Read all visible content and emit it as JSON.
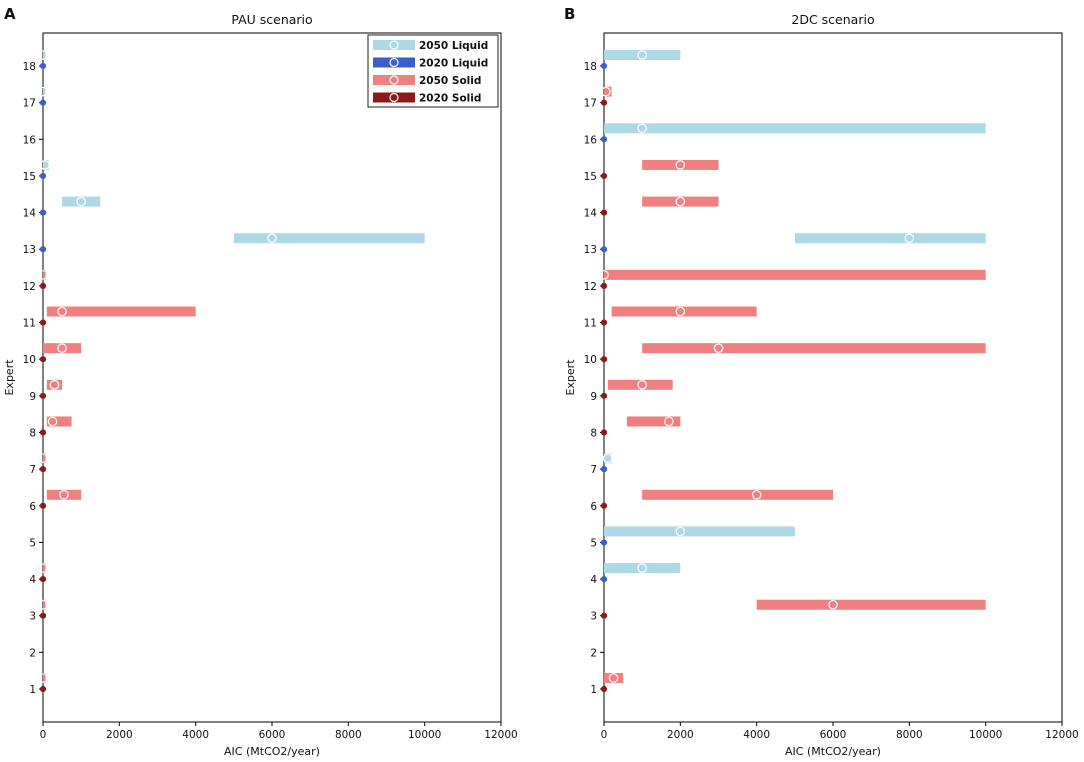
{
  "figure": {
    "panel_labels": [
      "A",
      "B"
    ]
  },
  "legend": {
    "entries": [
      {
        "label": "2050 Liquid",
        "color": "#add8e6"
      },
      {
        "label": "2020 Liquid",
        "color": "#4169e1"
      },
      {
        "label": "2050 Solid",
        "color": "#f08080"
      },
      {
        "label": "2020 Solid",
        "color": "#8b1a1a"
      }
    ]
  },
  "colors": {
    "liquid_2050": "#add8e6",
    "liquid_2020": "#3a5fcd",
    "solid_2050": "#f08080",
    "solid_2020": "#8b1a1a",
    "marker_ring": "#ffffff"
  },
  "chart_data": [
    {
      "type": "range-bar",
      "title": "PAU scenario",
      "xlabel": "AIC (MtCO2/year)",
      "ylabel": "Expert",
      "xlim": [
        0,
        12000
      ],
      "ylim": [
        0.1,
        18.9
      ],
      "xticks": [
        0,
        2000,
        4000,
        6000,
        8000,
        10000,
        12000
      ],
      "yticks": [
        1,
        2,
        3,
        4,
        5,
        6,
        7,
        8,
        9,
        10,
        11,
        12,
        13,
        14,
        15,
        16,
        17,
        18
      ],
      "series_2020": [
        {
          "expert": 1,
          "kind": "solid",
          "value": 0
        },
        {
          "expert": 3,
          "kind": "solid",
          "value": 0
        },
        {
          "expert": 4,
          "kind": "solid",
          "value": 0
        },
        {
          "expert": 6,
          "kind": "solid",
          "value": 0
        },
        {
          "expert": 7,
          "kind": "solid",
          "value": 0
        },
        {
          "expert": 8,
          "kind": "solid",
          "value": 0
        },
        {
          "expert": 9,
          "kind": "solid",
          "value": 0
        },
        {
          "expert": 10,
          "kind": "solid",
          "value": 0
        },
        {
          "expert": 11,
          "kind": "solid",
          "value": 0
        },
        {
          "expert": 12,
          "kind": "solid",
          "value": 0
        },
        {
          "expert": 13,
          "kind": "liquid",
          "value": 0
        },
        {
          "expert": 14,
          "kind": "liquid",
          "value": 0
        },
        {
          "expert": 15,
          "kind": "liquid",
          "value": 0
        },
        {
          "expert": 17,
          "kind": "liquid",
          "value": 0
        },
        {
          "expert": 18,
          "kind": "liquid",
          "value": 0
        }
      ],
      "series_2050": [
        {
          "expert": 1,
          "kind": "solid",
          "low": 0,
          "high": 20,
          "best": 0
        },
        {
          "expert": 3,
          "kind": "solid",
          "low": 0,
          "high": 20,
          "best": 0
        },
        {
          "expert": 4,
          "kind": "solid",
          "low": 0,
          "high": 20,
          "best": 0
        },
        {
          "expert": 6,
          "kind": "solid",
          "low": 100,
          "high": 1000,
          "best": 550
        },
        {
          "expert": 7,
          "kind": "solid",
          "low": 0,
          "high": 20,
          "best": 0
        },
        {
          "expert": 8,
          "kind": "solid",
          "low": 100,
          "high": 750,
          "best": 250
        },
        {
          "expert": 9,
          "kind": "solid",
          "low": 100,
          "high": 500,
          "best": 300
        },
        {
          "expert": 10,
          "kind": "solid",
          "low": 0,
          "high": 1000,
          "best": 500
        },
        {
          "expert": 11,
          "kind": "solid",
          "low": 100,
          "high": 4000,
          "best": 500
        },
        {
          "expert": 12,
          "kind": "solid",
          "low": 0,
          "high": 20,
          "best": 0
        },
        {
          "expert": 13,
          "kind": "liquid",
          "low": 5000,
          "high": 10000,
          "best": 6000
        },
        {
          "expert": 14,
          "kind": "liquid",
          "low": 500,
          "high": 1500,
          "best": 1000
        },
        {
          "expert": 15,
          "kind": "liquid",
          "low": 0,
          "high": 150,
          "best": 50
        },
        {
          "expert": 17,
          "kind": "liquid",
          "low": 0,
          "high": 20,
          "best": 0
        },
        {
          "expert": 18,
          "kind": "liquid",
          "low": 0,
          "high": 20,
          "best": 0
        }
      ]
    },
    {
      "type": "range-bar",
      "title": "2DC scenario",
      "xlabel": "AIC (MtCO2/year)",
      "ylabel": "Expert",
      "xlim": [
        0,
        12000
      ],
      "ylim": [
        0.1,
        18.9
      ],
      "xticks": [
        0,
        2000,
        4000,
        6000,
        8000,
        10000,
        12000
      ],
      "yticks": [
        1,
        2,
        3,
        4,
        5,
        6,
        7,
        8,
        9,
        10,
        11,
        12,
        13,
        14,
        15,
        16,
        17,
        18
      ],
      "series_2020": [
        {
          "expert": 1,
          "kind": "solid",
          "value": 0
        },
        {
          "expert": 3,
          "kind": "solid",
          "value": 0
        },
        {
          "expert": 4,
          "kind": "liquid",
          "value": 0
        },
        {
          "expert": 5,
          "kind": "liquid",
          "value": 0
        },
        {
          "expert": 6,
          "kind": "solid",
          "value": 0
        },
        {
          "expert": 7,
          "kind": "liquid",
          "value": 0
        },
        {
          "expert": 8,
          "kind": "solid",
          "value": 0
        },
        {
          "expert": 9,
          "kind": "solid",
          "value": 0
        },
        {
          "expert": 10,
          "kind": "solid",
          "value": 0
        },
        {
          "expert": 11,
          "kind": "solid",
          "value": 0
        },
        {
          "expert": 12,
          "kind": "solid",
          "value": 0
        },
        {
          "expert": 13,
          "kind": "liquid",
          "value": 0
        },
        {
          "expert": 14,
          "kind": "solid",
          "value": 0
        },
        {
          "expert": 15,
          "kind": "solid",
          "value": 0
        },
        {
          "expert": 16,
          "kind": "liquid",
          "value": 0
        },
        {
          "expert": 17,
          "kind": "solid",
          "value": 0
        },
        {
          "expert": 18,
          "kind": "liquid",
          "value": 0
        }
      ],
      "series_2050": [
        {
          "expert": 1,
          "kind": "solid",
          "low": 0,
          "high": 500,
          "best": 250
        },
        {
          "expert": 3,
          "kind": "solid",
          "low": 4000,
          "high": 10000,
          "best": 6000
        },
        {
          "expert": 4,
          "kind": "liquid",
          "low": 0,
          "high": 2000,
          "best": 1000
        },
        {
          "expert": 5,
          "kind": "liquid",
          "low": 0,
          "high": 5000,
          "best": 2000
        },
        {
          "expert": 6,
          "kind": "solid",
          "low": 1000,
          "high": 6000,
          "best": 4000
        },
        {
          "expert": 7,
          "kind": "liquid",
          "low": 0,
          "high": 200,
          "best": 100
        },
        {
          "expert": 8,
          "kind": "solid",
          "low": 600,
          "high": 2000,
          "best": 1700
        },
        {
          "expert": 9,
          "kind": "solid",
          "low": 100,
          "high": 1800,
          "best": 1000
        },
        {
          "expert": 10,
          "kind": "solid",
          "low": 1000,
          "high": 10000,
          "best": 3000
        },
        {
          "expert": 11,
          "kind": "solid",
          "low": 200,
          "high": 4000,
          "best": 2000
        },
        {
          "expert": 12,
          "kind": "solid",
          "low": 0,
          "high": 10000,
          "best": 0
        },
        {
          "expert": 13,
          "kind": "liquid",
          "low": 5000,
          "high": 10000,
          "best": 8000
        },
        {
          "expert": 14,
          "kind": "solid",
          "low": 1000,
          "high": 3000,
          "best": 2000
        },
        {
          "expert": 15,
          "kind": "solid",
          "low": 1000,
          "high": 3000,
          "best": 2000
        },
        {
          "expert": 16,
          "kind": "liquid",
          "low": 0,
          "high": 10000,
          "best": 1000
        },
        {
          "expert": 17,
          "kind": "solid",
          "low": 0,
          "high": 200,
          "best": 50
        },
        {
          "expert": 18,
          "kind": "liquid",
          "low": 0,
          "high": 2000,
          "best": 1000
        }
      ]
    }
  ]
}
